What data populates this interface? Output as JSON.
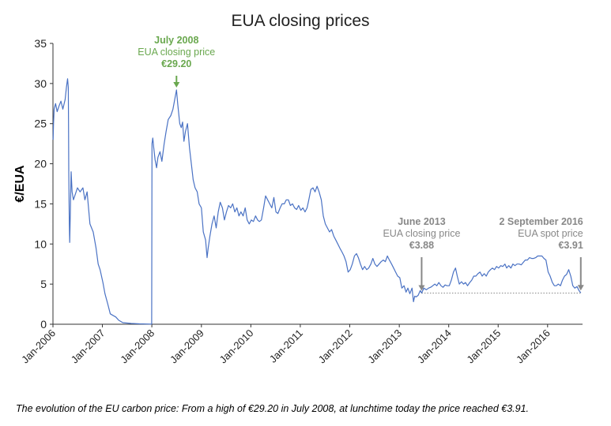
{
  "chart_data": {
    "type": "line",
    "title": "EUA closing prices",
    "xlabel": "",
    "ylabel": "€/EUA",
    "ylim": [
      0,
      35
    ],
    "yticks": [
      0,
      5,
      10,
      15,
      20,
      25,
      30,
      35
    ],
    "xlim": [
      "2006-01-01",
      "2016-09-15"
    ],
    "xticks": [
      {
        "date": "2006-01-01",
        "label": "Jan-2006"
      },
      {
        "date": "2007-01-01",
        "label": "Jan-2007"
      },
      {
        "date": "2008-01-01",
        "label": "Jan-2008"
      },
      {
        "date": "2009-01-01",
        "label": "Jan-2009"
      },
      {
        "date": "2010-01-01",
        "label": "Jan-2010"
      },
      {
        "date": "2011-01-01",
        "label": "Jan-2011"
      },
      {
        "date": "2012-01-01",
        "label": "Jan-2012"
      },
      {
        "date": "2013-01-01",
        "label": "Jan-2013"
      },
      {
        "date": "2014-01-01",
        "label": "Jan-2014"
      },
      {
        "date": "2015-01-01",
        "label": "Jan-2015"
      },
      {
        "date": "2016-01-01",
        "label": "Jan-2016"
      }
    ],
    "grid": false,
    "line_color": "#4a72c4",
    "series": [
      {
        "points": [
          [
            "2006-01-02",
            23.0
          ],
          [
            "2006-01-05",
            25.0
          ],
          [
            "2006-01-10",
            26.8
          ],
          [
            "2006-01-20",
            27.5
          ],
          [
            "2006-02-01",
            26.5
          ],
          [
            "2006-02-15",
            27.2
          ],
          [
            "2006-03-01",
            27.8
          ],
          [
            "2006-03-15",
            26.8
          ],
          [
            "2006-04-01",
            28.0
          ],
          [
            "2006-04-10",
            29.5
          ],
          [
            "2006-04-19",
            30.6
          ],
          [
            "2006-04-24",
            29.5
          ],
          [
            "2006-04-26",
            25.0
          ],
          [
            "2006-04-28",
            19.0
          ],
          [
            "2006-05-02",
            12.5
          ],
          [
            "2006-05-05",
            10.2
          ],
          [
            "2006-05-10",
            14.5
          ],
          [
            "2006-05-15",
            19.0
          ],
          [
            "2006-05-22",
            16.5
          ],
          [
            "2006-06-01",
            15.5
          ],
          [
            "2006-06-15",
            16.2
          ],
          [
            "2006-07-01",
            17.0
          ],
          [
            "2006-07-20",
            16.5
          ],
          [
            "2006-08-10",
            17.0
          ],
          [
            "2006-08-25",
            15.5
          ],
          [
            "2006-09-10",
            16.5
          ],
          [
            "2006-10-01",
            12.5
          ],
          [
            "2006-10-25",
            11.5
          ],
          [
            "2006-11-15",
            9.5
          ],
          [
            "2006-12-01",
            7.5
          ],
          [
            "2006-12-15",
            6.8
          ],
          [
            "2007-01-05",
            5.2
          ],
          [
            "2007-01-20",
            3.8
          ],
          [
            "2007-02-10",
            2.5
          ],
          [
            "2007-02-28",
            1.3
          ],
          [
            "2007-03-20",
            1.1
          ],
          [
            "2007-04-10",
            0.9
          ],
          [
            "2007-05-01",
            0.5
          ],
          [
            "2007-06-01",
            0.2
          ],
          [
            "2007-08-01",
            0.1
          ],
          [
            "2007-10-01",
            0.05
          ],
          [
            "2007-12-20",
            0.02
          ],
          [
            "2007-12-31",
            0.02
          ],
          [
            "2008-01-02",
            22.5
          ],
          [
            "2008-01-08",
            23.2
          ],
          [
            "2008-01-15",
            22.0
          ],
          [
            "2008-01-25",
            20.5
          ],
          [
            "2008-02-05",
            19.5
          ],
          [
            "2008-02-15",
            20.8
          ],
          [
            "2008-03-01",
            21.5
          ],
          [
            "2008-03-15",
            20.3
          ],
          [
            "2008-04-01",
            22.5
          ],
          [
            "2008-04-15",
            24.0
          ],
          [
            "2008-05-01",
            25.5
          ],
          [
            "2008-05-20",
            26.0
          ],
          [
            "2008-06-05",
            26.8
          ],
          [
            "2008-06-20",
            28.2
          ],
          [
            "2008-07-01",
            29.2
          ],
          [
            "2008-07-10",
            27.5
          ],
          [
            "2008-07-25",
            25.0
          ],
          [
            "2008-08-05",
            24.5
          ],
          [
            "2008-08-15",
            25.2
          ],
          [
            "2008-08-25",
            22.8
          ],
          [
            "2008-09-05",
            24.0
          ],
          [
            "2008-09-20",
            25.0
          ],
          [
            "2008-10-05",
            22.0
          ],
          [
            "2008-10-20",
            19.8
          ],
          [
            "2008-11-01",
            18.0
          ],
          [
            "2008-11-15",
            17.0
          ],
          [
            "2008-12-01",
            16.5
          ],
          [
            "2008-12-15",
            15.0
          ],
          [
            "2009-01-01",
            14.5
          ],
          [
            "2009-01-15",
            11.5
          ],
          [
            "2009-02-01",
            10.5
          ],
          [
            "2009-02-12",
            8.3
          ],
          [
            "2009-02-20",
            9.5
          ],
          [
            "2009-03-05",
            11.0
          ],
          [
            "2009-03-20",
            12.5
          ],
          [
            "2009-04-05",
            13.5
          ],
          [
            "2009-04-20",
            12.0
          ],
          [
            "2009-05-05",
            14.0
          ],
          [
            "2009-05-20",
            15.2
          ],
          [
            "2009-06-05",
            14.5
          ],
          [
            "2009-06-20",
            13.0
          ],
          [
            "2009-07-05",
            14.0
          ],
          [
            "2009-07-20",
            14.8
          ],
          [
            "2009-08-05",
            14.5
          ],
          [
            "2009-08-20",
            15.0
          ],
          [
            "2009-09-05",
            14.0
          ],
          [
            "2009-09-20",
            14.5
          ],
          [
            "2009-10-05",
            13.5
          ],
          [
            "2009-10-20",
            14.0
          ],
          [
            "2009-11-05",
            13.5
          ],
          [
            "2009-11-20",
            14.5
          ],
          [
            "2009-12-05",
            13.0
          ],
          [
            "2009-12-20",
            12.5
          ],
          [
            "2010-01-05",
            13.0
          ],
          [
            "2010-01-20",
            12.8
          ],
          [
            "2010-02-05",
            13.5
          ],
          [
            "2010-02-20",
            13.0
          ],
          [
            "2010-03-05",
            12.8
          ],
          [
            "2010-03-20",
            13.0
          ],
          [
            "2010-04-05",
            14.5
          ],
          [
            "2010-04-20",
            16.0
          ],
          [
            "2010-05-05",
            15.5
          ],
          [
            "2010-05-20",
            15.0
          ],
          [
            "2010-06-05",
            14.5
          ],
          [
            "2010-06-20",
            15.8
          ],
          [
            "2010-07-05",
            14.0
          ],
          [
            "2010-07-20",
            13.8
          ],
          [
            "2010-08-05",
            14.5
          ],
          [
            "2010-08-20",
            15.0
          ],
          [
            "2010-09-05",
            15.0
          ],
          [
            "2010-09-20",
            15.5
          ],
          [
            "2010-10-05",
            15.5
          ],
          [
            "2010-10-20",
            14.8
          ],
          [
            "2010-11-05",
            15.0
          ],
          [
            "2010-11-20",
            14.5
          ],
          [
            "2010-12-05",
            14.3
          ],
          [
            "2010-12-20",
            14.8
          ],
          [
            "2011-01-05",
            14.2
          ],
          [
            "2011-01-20",
            14.5
          ],
          [
            "2011-02-05",
            14.0
          ],
          [
            "2011-02-20",
            14.5
          ],
          [
            "2011-03-05",
            15.5
          ],
          [
            "2011-03-20",
            16.8
          ],
          [
            "2011-04-05",
            17.0
          ],
          [
            "2011-04-20",
            16.5
          ],
          [
            "2011-05-05",
            17.2
          ],
          [
            "2011-05-20",
            16.5
          ],
          [
            "2011-06-05",
            15.5
          ],
          [
            "2011-06-20",
            13.5
          ],
          [
            "2011-07-05",
            12.5
          ],
          [
            "2011-07-20",
            12.0
          ],
          [
            "2011-08-05",
            11.5
          ],
          [
            "2011-08-20",
            11.8
          ],
          [
            "2011-09-05",
            11.0
          ],
          [
            "2011-09-20",
            10.5
          ],
          [
            "2011-10-05",
            10.0
          ],
          [
            "2011-10-20",
            9.5
          ],
          [
            "2011-11-05",
            9.0
          ],
          [
            "2011-11-20",
            8.5
          ],
          [
            "2011-12-05",
            7.8
          ],
          [
            "2011-12-20",
            6.5
          ],
          [
            "2012-01-05",
            6.8
          ],
          [
            "2012-01-20",
            7.5
          ],
          [
            "2012-02-05",
            8.5
          ],
          [
            "2012-02-20",
            8.8
          ],
          [
            "2012-03-05",
            8.3
          ],
          [
            "2012-03-20",
            7.5
          ],
          [
            "2012-04-05",
            6.8
          ],
          [
            "2012-04-20",
            7.2
          ],
          [
            "2012-05-05",
            6.8
          ],
          [
            "2012-05-20",
            7.0
          ],
          [
            "2012-06-05",
            7.5
          ],
          [
            "2012-06-20",
            8.2
          ],
          [
            "2012-07-05",
            7.5
          ],
          [
            "2012-07-20",
            7.2
          ],
          [
            "2012-08-05",
            7.5
          ],
          [
            "2012-08-20",
            7.8
          ],
          [
            "2012-09-05",
            8.0
          ],
          [
            "2012-09-20",
            7.8
          ],
          [
            "2012-10-05",
            8.5
          ],
          [
            "2012-10-20",
            8.0
          ],
          [
            "2012-11-05",
            7.5
          ],
          [
            "2012-11-20",
            7.0
          ],
          [
            "2012-12-05",
            6.5
          ],
          [
            "2012-12-20",
            6.0
          ],
          [
            "2013-01-05",
            5.8
          ],
          [
            "2013-01-20",
            4.5
          ],
          [
            "2013-02-05",
            4.8
          ],
          [
            "2013-02-20",
            4.0
          ],
          [
            "2013-03-05",
            4.5
          ],
          [
            "2013-03-20",
            3.8
          ],
          [
            "2013-04-05",
            4.5
          ],
          [
            "2013-04-16",
            2.8
          ],
          [
            "2013-04-25",
            3.5
          ],
          [
            "2013-05-05",
            3.4
          ],
          [
            "2013-05-20",
            3.6
          ],
          [
            "2013-06-05",
            4.2
          ],
          [
            "2013-06-15",
            3.88
          ],
          [
            "2013-07-01",
            4.5
          ],
          [
            "2013-07-20",
            4.3
          ],
          [
            "2013-08-05",
            4.5
          ],
          [
            "2013-08-20",
            4.6
          ],
          [
            "2013-09-05",
            4.8
          ],
          [
            "2013-09-20",
            5.0
          ],
          [
            "2013-10-05",
            4.8
          ],
          [
            "2013-10-20",
            5.2
          ],
          [
            "2013-11-05",
            4.8
          ],
          [
            "2013-11-20",
            4.6
          ],
          [
            "2013-12-05",
            4.9
          ],
          [
            "2013-12-20",
            4.8
          ],
          [
            "2014-01-05",
            4.8
          ],
          [
            "2014-01-20",
            5.5
          ],
          [
            "2014-02-05",
            6.5
          ],
          [
            "2014-02-20",
            7.0
          ],
          [
            "2014-03-05",
            6.0
          ],
          [
            "2014-03-20",
            5.0
          ],
          [
            "2014-04-05",
            5.3
          ],
          [
            "2014-04-20",
            5.0
          ],
          [
            "2014-05-05",
            5.2
          ],
          [
            "2014-05-20",
            4.8
          ],
          [
            "2014-06-05",
            5.2
          ],
          [
            "2014-06-20",
            5.5
          ],
          [
            "2014-07-05",
            6.0
          ],
          [
            "2014-07-20",
            6.0
          ],
          [
            "2014-08-05",
            6.3
          ],
          [
            "2014-08-20",
            6.5
          ],
          [
            "2014-09-05",
            6.0
          ],
          [
            "2014-09-20",
            6.3
          ],
          [
            "2014-10-05",
            6.0
          ],
          [
            "2014-10-20",
            6.5
          ],
          [
            "2014-11-05",
            6.8
          ],
          [
            "2014-11-20",
            7.0
          ],
          [
            "2014-12-05",
            6.8
          ],
          [
            "2014-12-20",
            7.2
          ],
          [
            "2015-01-05",
            7.0
          ],
          [
            "2015-01-20",
            7.3
          ],
          [
            "2015-02-05",
            7.2
          ],
          [
            "2015-02-20",
            7.5
          ],
          [
            "2015-03-05",
            7.0
          ],
          [
            "2015-03-20",
            7.3
          ],
          [
            "2015-04-05",
            7.0
          ],
          [
            "2015-04-20",
            7.5
          ],
          [
            "2015-05-05",
            7.3
          ],
          [
            "2015-05-20",
            7.5
          ],
          [
            "2015-06-05",
            7.5
          ],
          [
            "2015-06-20",
            7.4
          ],
          [
            "2015-07-05",
            7.7
          ],
          [
            "2015-07-20",
            8.0
          ],
          [
            "2015-08-05",
            8.0
          ],
          [
            "2015-08-20",
            8.3
          ],
          [
            "2015-09-05",
            8.2
          ],
          [
            "2015-09-20",
            8.2
          ],
          [
            "2015-10-05",
            8.3
          ],
          [
            "2015-10-20",
            8.5
          ],
          [
            "2015-11-05",
            8.5
          ],
          [
            "2015-11-20",
            8.5
          ],
          [
            "2015-12-05",
            8.2
          ],
          [
            "2015-12-20",
            8.0
          ],
          [
            "2016-01-05",
            6.5
          ],
          [
            "2016-01-20",
            6.0
          ],
          [
            "2016-02-05",
            5.2
          ],
          [
            "2016-02-20",
            4.8
          ],
          [
            "2016-03-05",
            4.8
          ],
          [
            "2016-03-20",
            5.0
          ],
          [
            "2016-04-05",
            4.8
          ],
          [
            "2016-04-20",
            5.5
          ],
          [
            "2016-05-05",
            6.0
          ],
          [
            "2016-05-20",
            6.2
          ],
          [
            "2016-06-05",
            6.8
          ],
          [
            "2016-06-20",
            6.0
          ],
          [
            "2016-07-05",
            4.8
          ],
          [
            "2016-07-20",
            4.5
          ],
          [
            "2016-08-05",
            4.7
          ],
          [
            "2016-08-20",
            4.2
          ],
          [
            "2016-09-02",
            3.91
          ]
        ]
      }
    ],
    "reference_line": {
      "y": 3.88,
      "from": "2013-06-15",
      "to": "2016-09-02",
      "style": "dotted"
    },
    "annotations": [
      {
        "date": "2008-07-01",
        "value": 29.2,
        "title": "July 2008",
        "subtitle": "EUA closing price",
        "value_label": "€29.20",
        "color": "#6aa84f"
      },
      {
        "date": "2013-06-15",
        "value": 3.88,
        "title": "June 2013",
        "subtitle": "EUA closing price",
        "value_label": "€3.88",
        "color": "#888888"
      },
      {
        "date": "2016-09-02",
        "value": 3.91,
        "title": "2 September 2016",
        "subtitle": "EUA spot price",
        "value_label": "€3.91",
        "color": "#888888"
      }
    ]
  },
  "caption": "The evolution of the EU carbon price: From a high of €29.20 in July 2008, at lunchtime today the price reached €3.91."
}
